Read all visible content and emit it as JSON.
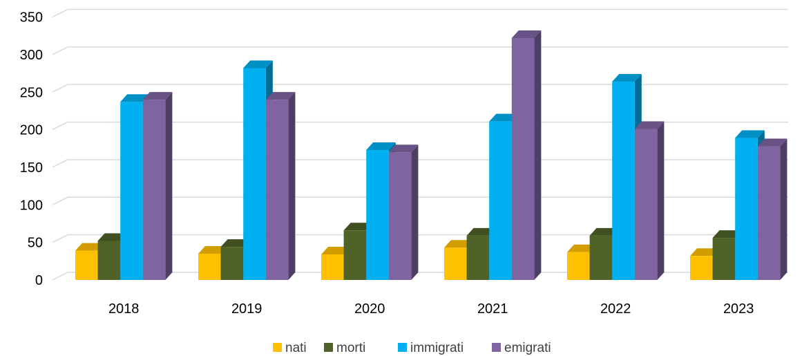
{
  "chart_data": {
    "type": "bar",
    "categories": [
      "2018",
      "2019",
      "2020",
      "2021",
      "2022",
      "2023"
    ],
    "series": [
      {
        "name": "nati",
        "values": [
          39,
          35,
          34,
          43,
          37,
          32
        ],
        "color": "#FFC000"
      },
      {
        "name": "morti",
        "values": [
          52,
          44,
          66,
          59,
          59,
          56
        ],
        "color": "#4F6228"
      },
      {
        "name": "immigrati",
        "values": [
          237,
          282,
          173,
          211,
          264,
          189
        ],
        "color": "#00B0F0"
      },
      {
        "name": "emigrati",
        "values": [
          240,
          240,
          170,
          322,
          201,
          178
        ],
        "color": "#8064A2"
      }
    ],
    "y_ticks": [
      "0",
      "50",
      "100",
      "150",
      "200",
      "250",
      "300",
      "350"
    ],
    "ylim": [
      0,
      350
    ],
    "grid": true,
    "legend": "bottom",
    "style": "3d-clustered-column"
  }
}
